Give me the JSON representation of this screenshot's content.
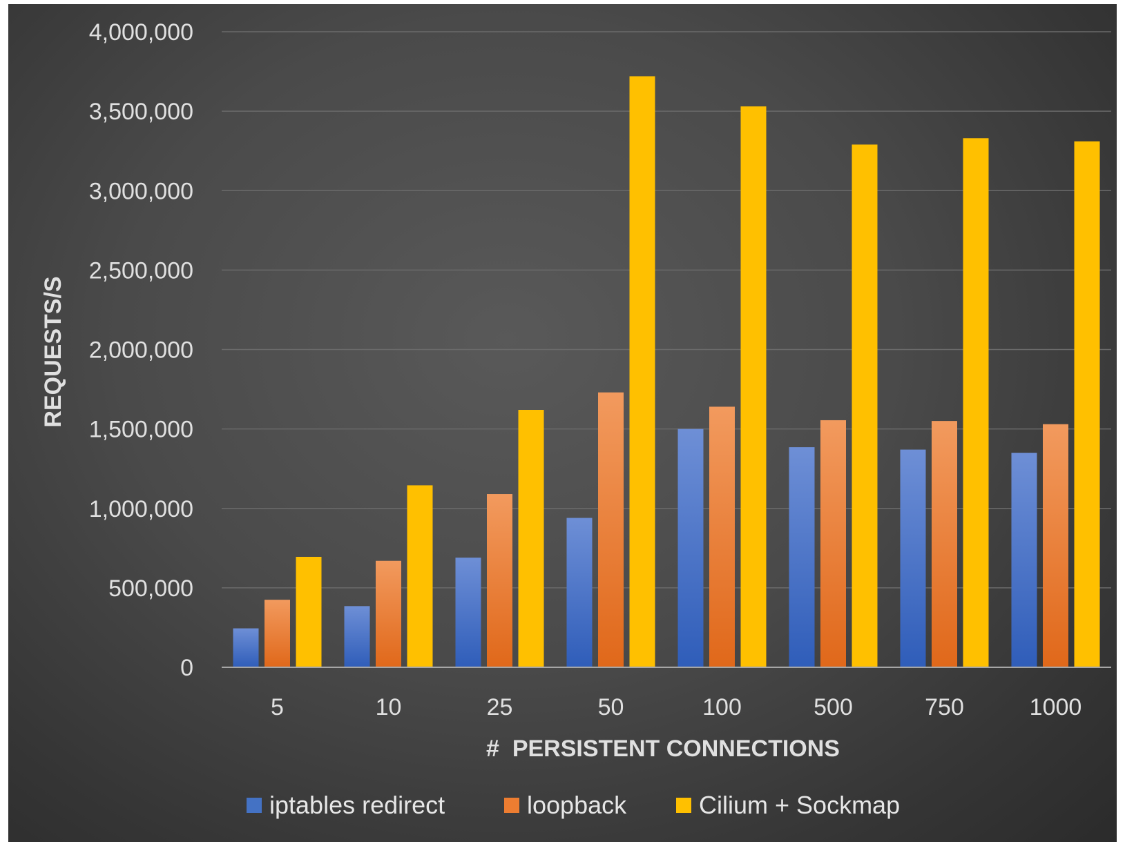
{
  "chart_data": {
    "type": "bar",
    "categories": [
      "5",
      "10",
      "25",
      "50",
      "100",
      "500",
      "750",
      "1000"
    ],
    "series": [
      {
        "name": "iptables redirect",
        "color": "#4472c4",
        "values": [
          245000,
          385000,
          690000,
          940000,
          1500000,
          1385000,
          1370000,
          1350000
        ]
      },
      {
        "name": "loopback",
        "color": "#ed7d31",
        "values": [
          425000,
          670000,
          1090000,
          1730000,
          1640000,
          1555000,
          1550000,
          1530000
        ]
      },
      {
        "name": "Cilium + Sockmap",
        "color": "#ffc000",
        "values": [
          695000,
          1145000,
          1620000,
          3720000,
          3530000,
          3290000,
          3330000,
          3310000
        ]
      }
    ],
    "yticks": [
      "0",
      "500,000",
      "1,000,000",
      "1,500,000",
      "2,000,000",
      "2,500,000",
      "3,000,000",
      "3,500,000",
      "4,000,000"
    ],
    "ylim": [
      0,
      4000000
    ],
    "xlabel": "#  PERSISTENT CONNECTIONS",
    "ylabel": "REQUESTS/S",
    "grid": true,
    "legend_position": "bottom"
  }
}
